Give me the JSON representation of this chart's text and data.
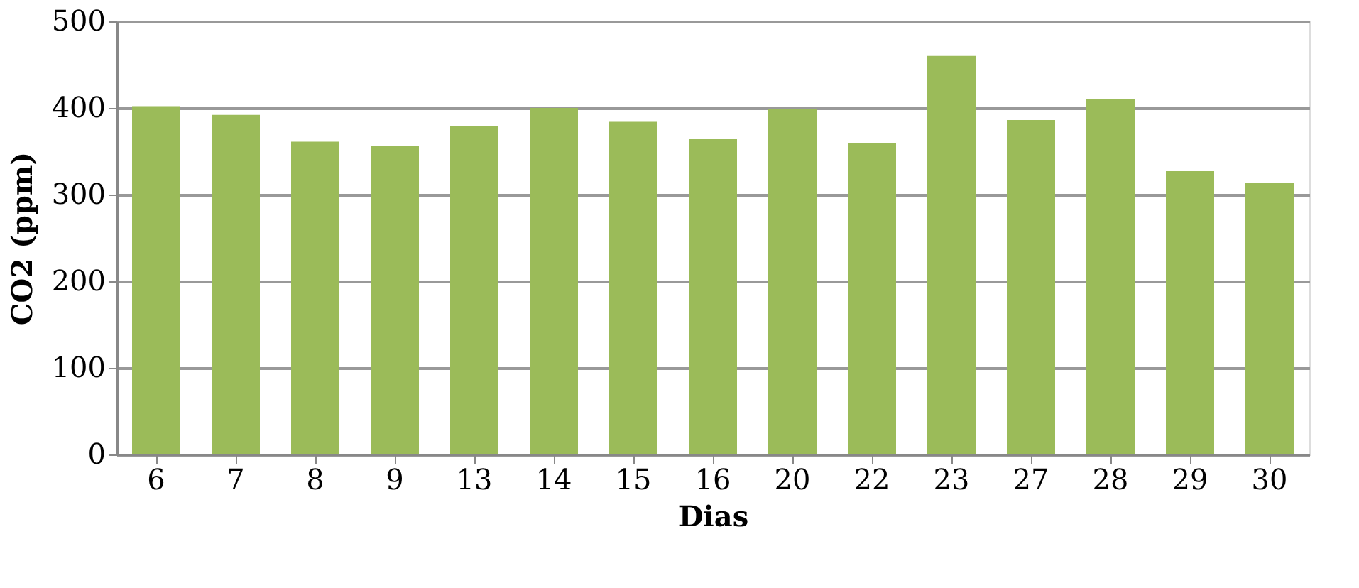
{
  "chart_data": {
    "type": "bar",
    "xlabel": "Dias",
    "ylabel": "CO2 (ppm)",
    "categories": [
      "6",
      "7",
      "8",
      "9",
      "13",
      "14",
      "15",
      "16",
      "20",
      "22",
      "23",
      "27",
      "28",
      "29",
      "30"
    ],
    "values": [
      402,
      392,
      361,
      356,
      379,
      400,
      384,
      364,
      399,
      359,
      460,
      386,
      410,
      327,
      314
    ],
    "color": "#9bbb59",
    "ylim": [
      0,
      500
    ],
    "yticks": [
      0,
      100,
      200,
      300,
      400,
      500
    ],
    "grid": "y"
  }
}
